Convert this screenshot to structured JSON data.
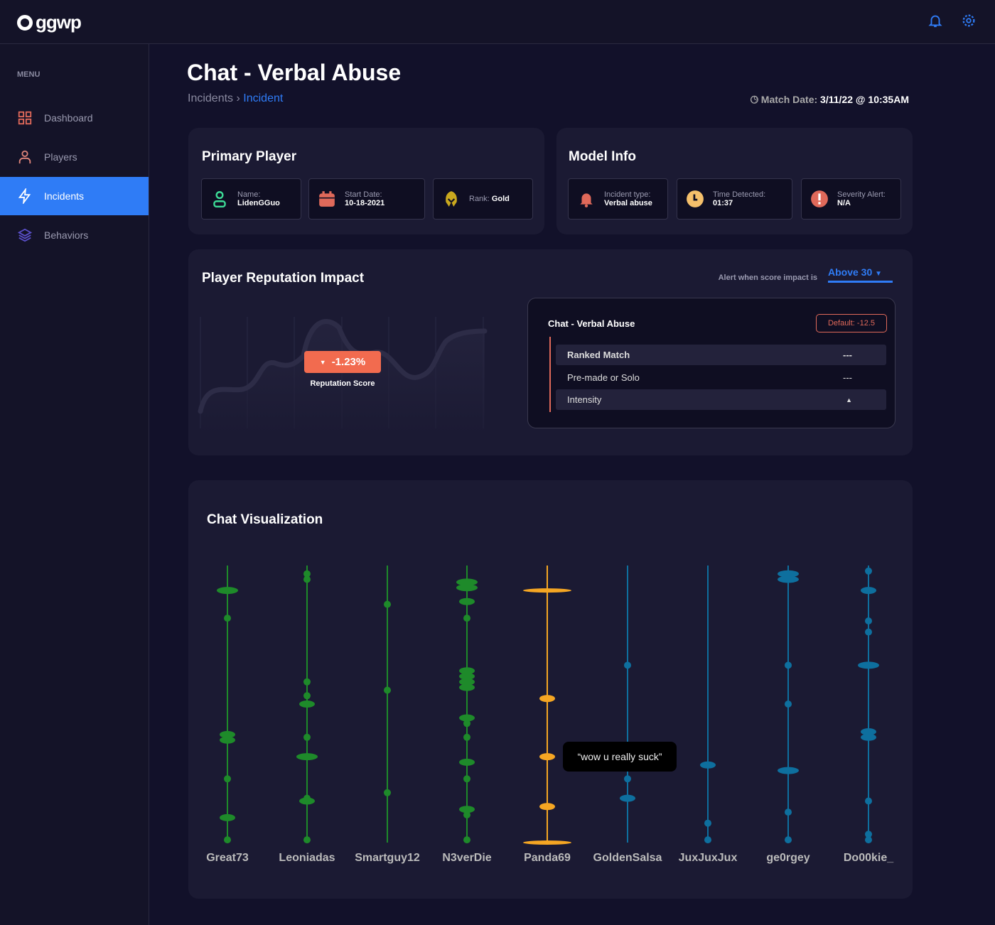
{
  "app": {
    "logo": "ggwp"
  },
  "sidebar": {
    "menu_label": "MENU",
    "items": [
      {
        "label": "Dashboard"
      },
      {
        "label": "Players"
      },
      {
        "label": "Incidents"
      },
      {
        "label": "Behaviors"
      }
    ]
  },
  "page": {
    "title": "Chat - Verbal Abuse",
    "breadcrumb": [
      "Incidents",
      "Incident"
    ],
    "match_label": "Match Date:",
    "match_value": "3/11/22 @ 10:35AM"
  },
  "primary_player": {
    "title": "Primary Player",
    "name_label": "Name:",
    "name": "LidenGGuo",
    "start_label": "Start Date:",
    "start": "10-18-2021",
    "rank_label": "Rank:",
    "rank": "Gold"
  },
  "model_info": {
    "title": "Model Info",
    "type_label": "Incident type:",
    "type": "Verbal abuse",
    "time_label": "Time Detected:",
    "time": "01:37",
    "severity_label": "Severity Alert:",
    "severity": "N/A"
  },
  "reputation": {
    "title": "Player Reputation Impact",
    "alert_label": "Alert when score impact is",
    "alert_value": "Above 30",
    "change": "-1.23%",
    "score_label": "Reputation Score",
    "panel": {
      "title": "Chat - Verbal Abuse",
      "default": "Default: -12.5",
      "rows": [
        {
          "label": "Ranked Match",
          "value": "---"
        },
        {
          "label": "Pre-made or Solo",
          "value": "---"
        },
        {
          "label": "Intensity",
          "value": "▲"
        }
      ]
    }
  },
  "chat": {
    "title": "Chat Visualization",
    "tooltip": "“wow u really suck”",
    "colors": {
      "team1": "#1e8a2a",
      "panda": "#f5a623",
      "team2": "#0e6f9e"
    },
    "players": [
      {
        "name": "Great73",
        "team": "team1",
        "msgs": [
          [
            0.09,
            3
          ],
          [
            0.19,
            1
          ],
          [
            0.61,
            2
          ],
          [
            0.63,
            2
          ],
          [
            0.77,
            1
          ],
          [
            0.91,
            2
          ],
          [
            0.99,
            1
          ]
        ]
      },
      {
        "name": "Leoniadas",
        "team": "team1",
        "msgs": [
          [
            0.03,
            1
          ],
          [
            0.05,
            1
          ],
          [
            0.42,
            1
          ],
          [
            0.47,
            1
          ],
          [
            0.5,
            2
          ],
          [
            0.62,
            1
          ],
          [
            0.69,
            3
          ],
          [
            0.84,
            1
          ],
          [
            0.85,
            2
          ],
          [
            0.99,
            1
          ]
        ]
      },
      {
        "name": "Smartguy12",
        "team": "team1",
        "msgs": [
          [
            0.14,
            1
          ],
          [
            0.45,
            1
          ],
          [
            0.82,
            1
          ]
        ]
      },
      {
        "name": "N3verDie",
        "team": "team1",
        "msgs": [
          [
            0.06,
            3
          ],
          [
            0.08,
            3
          ],
          [
            0.13,
            2
          ],
          [
            0.19,
            1
          ],
          [
            0.38,
            2
          ],
          [
            0.4,
            2
          ],
          [
            0.42,
            2
          ],
          [
            0.44,
            2
          ],
          [
            0.55,
            2
          ],
          [
            0.57,
            1
          ],
          [
            0.62,
            1
          ],
          [
            0.71,
            2
          ],
          [
            0.77,
            1
          ],
          [
            0.88,
            2
          ],
          [
            0.9,
            1
          ],
          [
            0.99,
            1
          ]
        ]
      },
      {
        "name": "Panda69",
        "team": "panda",
        "msgs": [
          [
            0.09,
            4
          ],
          [
            0.48,
            2
          ],
          [
            0.69,
            2
          ],
          [
            0.87,
            2
          ],
          [
            1.0,
            4
          ]
        ]
      },
      {
        "name": "GoldenSalsa",
        "team": "team2",
        "msgs": [
          [
            0.36,
            1
          ],
          [
            0.77,
            1
          ],
          [
            0.84,
            2
          ]
        ]
      },
      {
        "name": "JuxJuxJux",
        "team": "team2",
        "msgs": [
          [
            0.72,
            2
          ],
          [
            0.93,
            1
          ],
          [
            0.99,
            1
          ]
        ]
      },
      {
        "name": "ge0rgey",
        "team": "team2",
        "msgs": [
          [
            0.03,
            3
          ],
          [
            0.05,
            3
          ],
          [
            0.36,
            1
          ],
          [
            0.5,
            1
          ],
          [
            0.74,
            3
          ],
          [
            0.89,
            1
          ],
          [
            0.99,
            1
          ]
        ]
      },
      {
        "name": "Do00kie_",
        "team": "team2",
        "msgs": [
          [
            0.02,
            1
          ],
          [
            0.09,
            2
          ],
          [
            0.2,
            1
          ],
          [
            0.24,
            1
          ],
          [
            0.36,
            3
          ],
          [
            0.6,
            2
          ],
          [
            0.62,
            2
          ],
          [
            0.85,
            1
          ],
          [
            0.97,
            1
          ],
          [
            0.99,
            1
          ]
        ]
      }
    ]
  }
}
